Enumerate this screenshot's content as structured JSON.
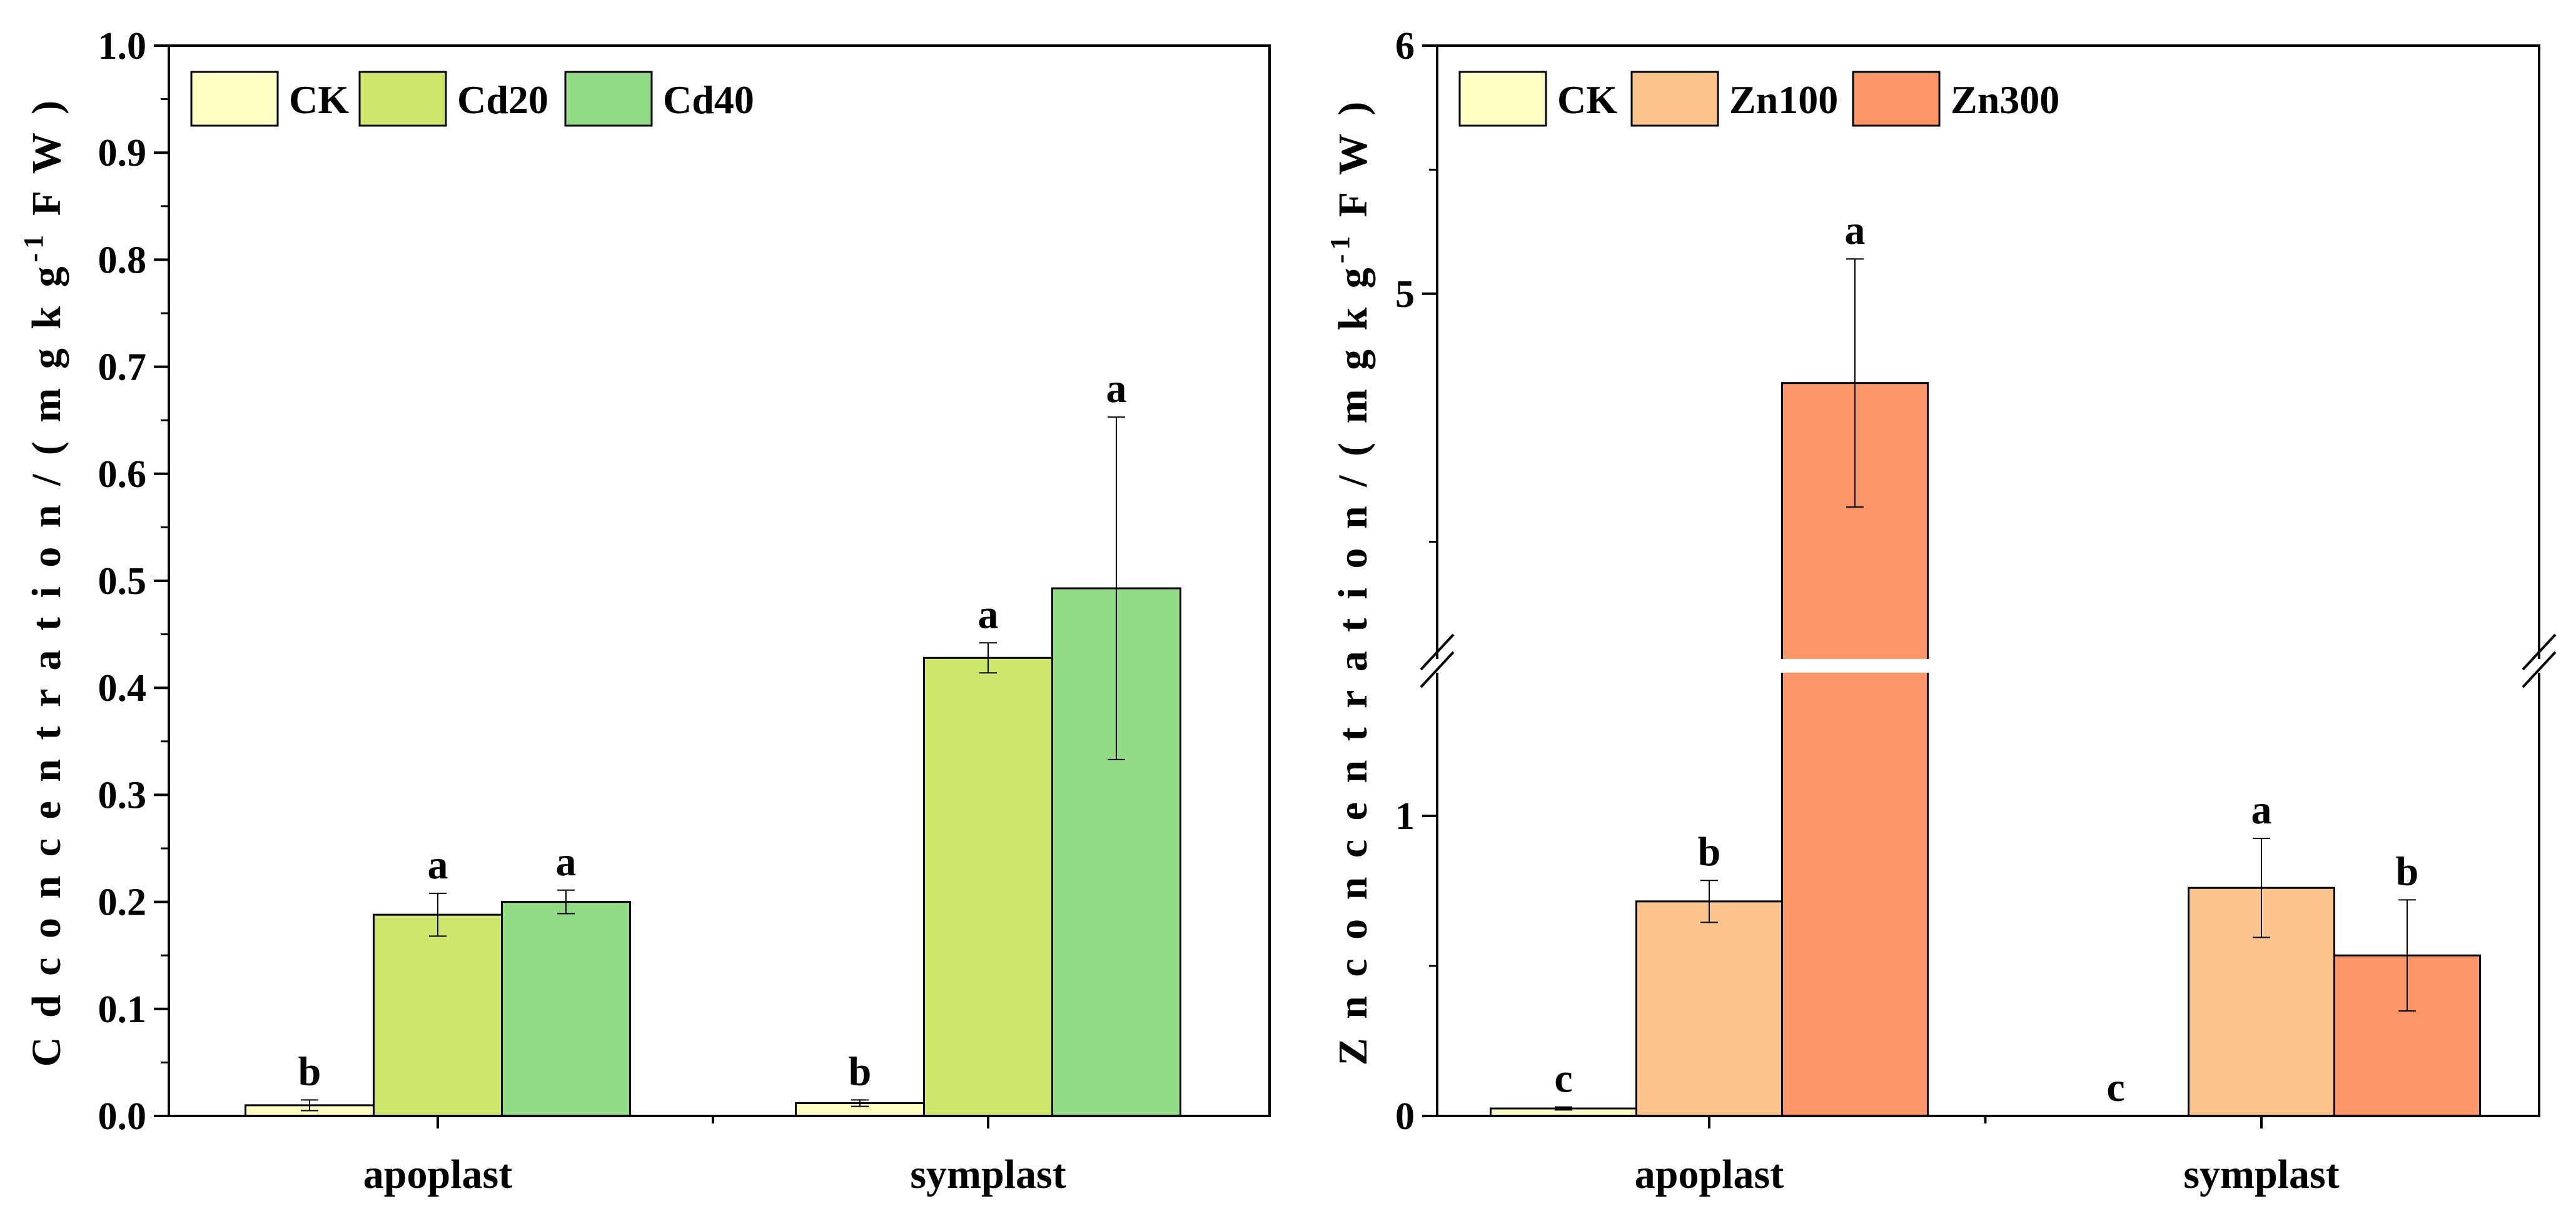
{
  "chart_data": [
    {
      "type": "bar",
      "title": "",
      "xlabel": "",
      "ylabel": "Cd concentration/(mg kg⁻¹ FW)",
      "ylabel_parts": {
        "prefix": "C d  c o n c e n t r a t i o n / ( m g  k g",
        "superscript": "-1",
        "suffix": " F W )"
      },
      "ylim": [
        0,
        1.0
      ],
      "yticks": [
        {
          "value": 0.0,
          "label": "0.0"
        },
        {
          "value": 0.1,
          "label": "0.1"
        },
        {
          "value": 0.2,
          "label": "0.2"
        },
        {
          "value": 0.3,
          "label": "0.3"
        },
        {
          "value": 0.4,
          "label": "0.4"
        },
        {
          "value": 0.5,
          "label": "0.5"
        },
        {
          "value": 0.6,
          "label": "0.6"
        },
        {
          "value": 0.7,
          "label": "0.7"
        },
        {
          "value": 0.8,
          "label": "0.8"
        },
        {
          "value": 0.9,
          "label": "0.9"
        },
        {
          "value": 1.0,
          "label": "1.0"
        }
      ],
      "categories": [
        "apoplast",
        "symplast"
      ],
      "legend_position": "top-left",
      "series": [
        {
          "name": "CK",
          "color": "#FFFFC4",
          "values": [
            0.01,
            0.012
          ],
          "errors": [
            0.005,
            0.003
          ],
          "labels": [
            "b",
            "b"
          ]
        },
        {
          "name": "Cd20",
          "color": "#CDE76A",
          "values": [
            0.188,
            0.428
          ],
          "errors": [
            0.02,
            0.014
          ],
          "labels": [
            "a",
            "a"
          ]
        },
        {
          "name": "Cd40",
          "color": "#93DC86",
          "values": [
            0.2,
            0.493
          ],
          "errors": [
            0.011,
            0.16
          ],
          "labels": [
            "a",
            "a"
          ]
        }
      ]
    },
    {
      "type": "bar",
      "title": "",
      "xlabel": "",
      "ylabel": "Zn concentration/(mg kg⁻¹ FW)",
      "ylabel_parts": {
        "prefix": "Z n  c o n c e n t r a t i o n / ( m g  k g",
        "superscript": "-1",
        "suffix": " F W )"
      },
      "ylim": [
        0,
        6
      ],
      "axis_break": {
        "lower_range": [
          0,
          1.5
        ],
        "upper_range": [
          3.5,
          6
        ]
      },
      "yticks": [
        {
          "value": 0,
          "label": "0"
        },
        {
          "value": 1,
          "label": "1"
        },
        {
          "value": 5,
          "label": "5"
        },
        {
          "value": 6,
          "label": "6"
        }
      ],
      "minor_ticks": [
        0.5,
        1.5,
        4,
        5.5
      ],
      "categories": [
        "apoplast",
        "symplast"
      ],
      "legend_position": "top-left",
      "series": [
        {
          "name": "CK",
          "color": "#FFFFC4",
          "values": [
            0.025,
            0.0
          ],
          "errors": [
            0.005,
            0.0
          ],
          "labels": [
            "c",
            "c"
          ]
        },
        {
          "name": "Zn100",
          "color": "#FDC58B",
          "values": [
            0.715,
            0.76
          ],
          "errors": [
            0.07,
            0.165
          ],
          "labels": [
            "b",
            "a"
          ]
        },
        {
          "name": "Zn300",
          "color": "#FC9668",
          "values": [
            4.64,
            0.535
          ],
          "errors": [
            0.5,
            0.185
          ],
          "labels": [
            "a",
            "b"
          ]
        }
      ]
    }
  ]
}
